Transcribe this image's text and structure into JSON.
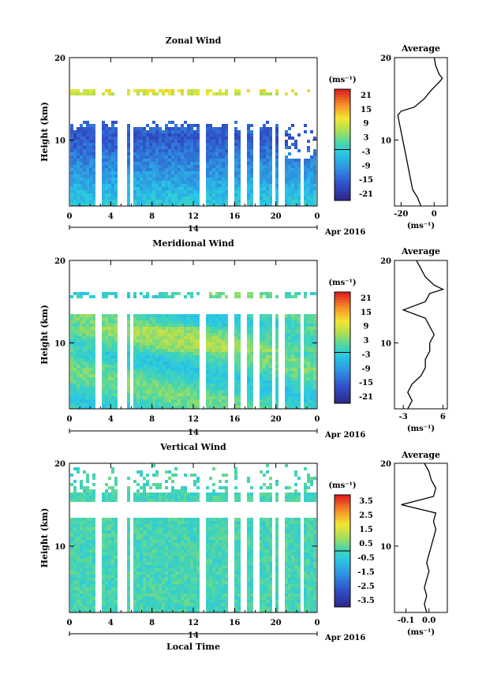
{
  "chart_data": [
    {
      "type": "heatmap",
      "title": "Zonal Wind",
      "ylabel": "Height (km)",
      "y_ticks": [
        10,
        20
      ],
      "ylim": [
        2,
        20
      ],
      "x_ticks": [
        "0",
        "4",
        "8",
        "12",
        "16",
        "20",
        "0"
      ],
      "xlim": [
        0,
        24
      ],
      "date_label": "14",
      "month_label": "Apr 2016",
      "colorbar": {
        "unit": "(ms⁻¹)",
        "labels": [
          "21",
          "15",
          "9",
          "3",
          "-3",
          "-9",
          "-15",
          "-21"
        ],
        "range": [
          -24,
          24
        ]
      },
      "average": {
        "title": "Average",
        "unit": "(ms⁻¹)",
        "x_ticks": [
          "-20",
          "0"
        ],
        "xlim": [
          -24,
          8
        ],
        "y_ticks": [
          10,
          20
        ],
        "profile": [
          [
            2,
            -8
          ],
          [
            3,
            -10
          ],
          [
            4,
            -13
          ],
          [
            5,
            -14
          ],
          [
            6,
            -15
          ],
          [
            7,
            -16
          ],
          [
            8,
            -17
          ],
          [
            9,
            -18
          ],
          [
            10,
            -19
          ],
          [
            11,
            -20
          ],
          [
            12,
            -21
          ],
          [
            13,
            -22
          ],
          [
            13.5,
            -20
          ],
          [
            14,
            -12
          ],
          [
            15,
            -6
          ],
          [
            16,
            -2
          ],
          [
            17,
            3
          ],
          [
            17.5,
            5
          ],
          [
            18,
            3
          ],
          [
            19,
            1
          ],
          [
            20,
            0
          ]
        ]
      }
    },
    {
      "type": "heatmap",
      "title": "Meridional Wind",
      "ylabel": "Height (km)",
      "y_ticks": [
        10,
        20
      ],
      "ylim": [
        2,
        20
      ],
      "x_ticks": [
        "0",
        "4",
        "8",
        "12",
        "16",
        "20",
        "0"
      ],
      "xlim": [
        0,
        24
      ],
      "date_label": "14",
      "month_label": "Apr 2016",
      "colorbar": {
        "unit": "(ms⁻¹)",
        "labels": [
          "21",
          "15",
          "9",
          "3",
          "-3",
          "-9",
          "-15",
          "-21"
        ],
        "range": [
          -24,
          24
        ]
      },
      "average": {
        "title": "Average",
        "unit": "(ms⁻¹)",
        "x_ticks": [
          "-3",
          "6"
        ],
        "xlim": [
          -5,
          7
        ],
        "y_ticks": [
          10,
          20
        ],
        "profile": [
          [
            2,
            -2
          ],
          [
            3,
            -1
          ],
          [
            4,
            -2
          ],
          [
            5,
            -1
          ],
          [
            6,
            1
          ],
          [
            7,
            2
          ],
          [
            8,
            2
          ],
          [
            9,
            3
          ],
          [
            10,
            3
          ],
          [
            11,
            4
          ],
          [
            12,
            3
          ],
          [
            13,
            2
          ],
          [
            14,
            -3
          ],
          [
            15,
            2
          ],
          [
            16,
            3
          ],
          [
            16.5,
            6
          ],
          [
            17,
            4
          ],
          [
            18,
            2
          ],
          [
            19,
            1
          ],
          [
            20,
            0
          ]
        ]
      }
    },
    {
      "type": "heatmap",
      "title": "Vertical Wind",
      "ylabel": "Height (km)",
      "y_ticks": [
        10,
        20
      ],
      "ylim": [
        2,
        20
      ],
      "x_ticks": [
        "0",
        "4",
        "8",
        "12",
        "16",
        "20",
        "0"
      ],
      "xlim": [
        0,
        24
      ],
      "date_label": "14",
      "month_label": "Apr 2016",
      "xlabel": "Local Time",
      "colorbar": {
        "unit": "(ms⁻¹)",
        "labels": [
          "3.5",
          "2.5",
          "1.5",
          "0.5",
          "-0.5",
          "-1.5",
          "-2.5",
          "-3.5"
        ],
        "range": [
          -4,
          4
        ]
      },
      "average": {
        "title": "Average",
        "unit": "(ms⁻¹)",
        "x_ticks": [
          "-0.1",
          "0.0"
        ],
        "xlim": [
          -0.15,
          0.08
        ],
        "y_ticks": [
          10,
          20
        ],
        "profile": [
          [
            2,
            -0.01
          ],
          [
            3,
            -0.02
          ],
          [
            4,
            -0.01
          ],
          [
            5,
            -0.02
          ],
          [
            6,
            -0.01
          ],
          [
            7,
            0.0
          ],
          [
            8,
            -0.01
          ],
          [
            9,
            0.0
          ],
          [
            10,
            0.01
          ],
          [
            11,
            0.02
          ],
          [
            12,
            0.03
          ],
          [
            13,
            0.02
          ],
          [
            14,
            0.03
          ],
          [
            15,
            -0.12
          ],
          [
            16,
            0.02
          ],
          [
            17,
            0.03
          ],
          [
            18,
            0.01
          ],
          [
            19,
            0.0
          ],
          [
            20,
            -0.02
          ]
        ]
      }
    }
  ]
}
